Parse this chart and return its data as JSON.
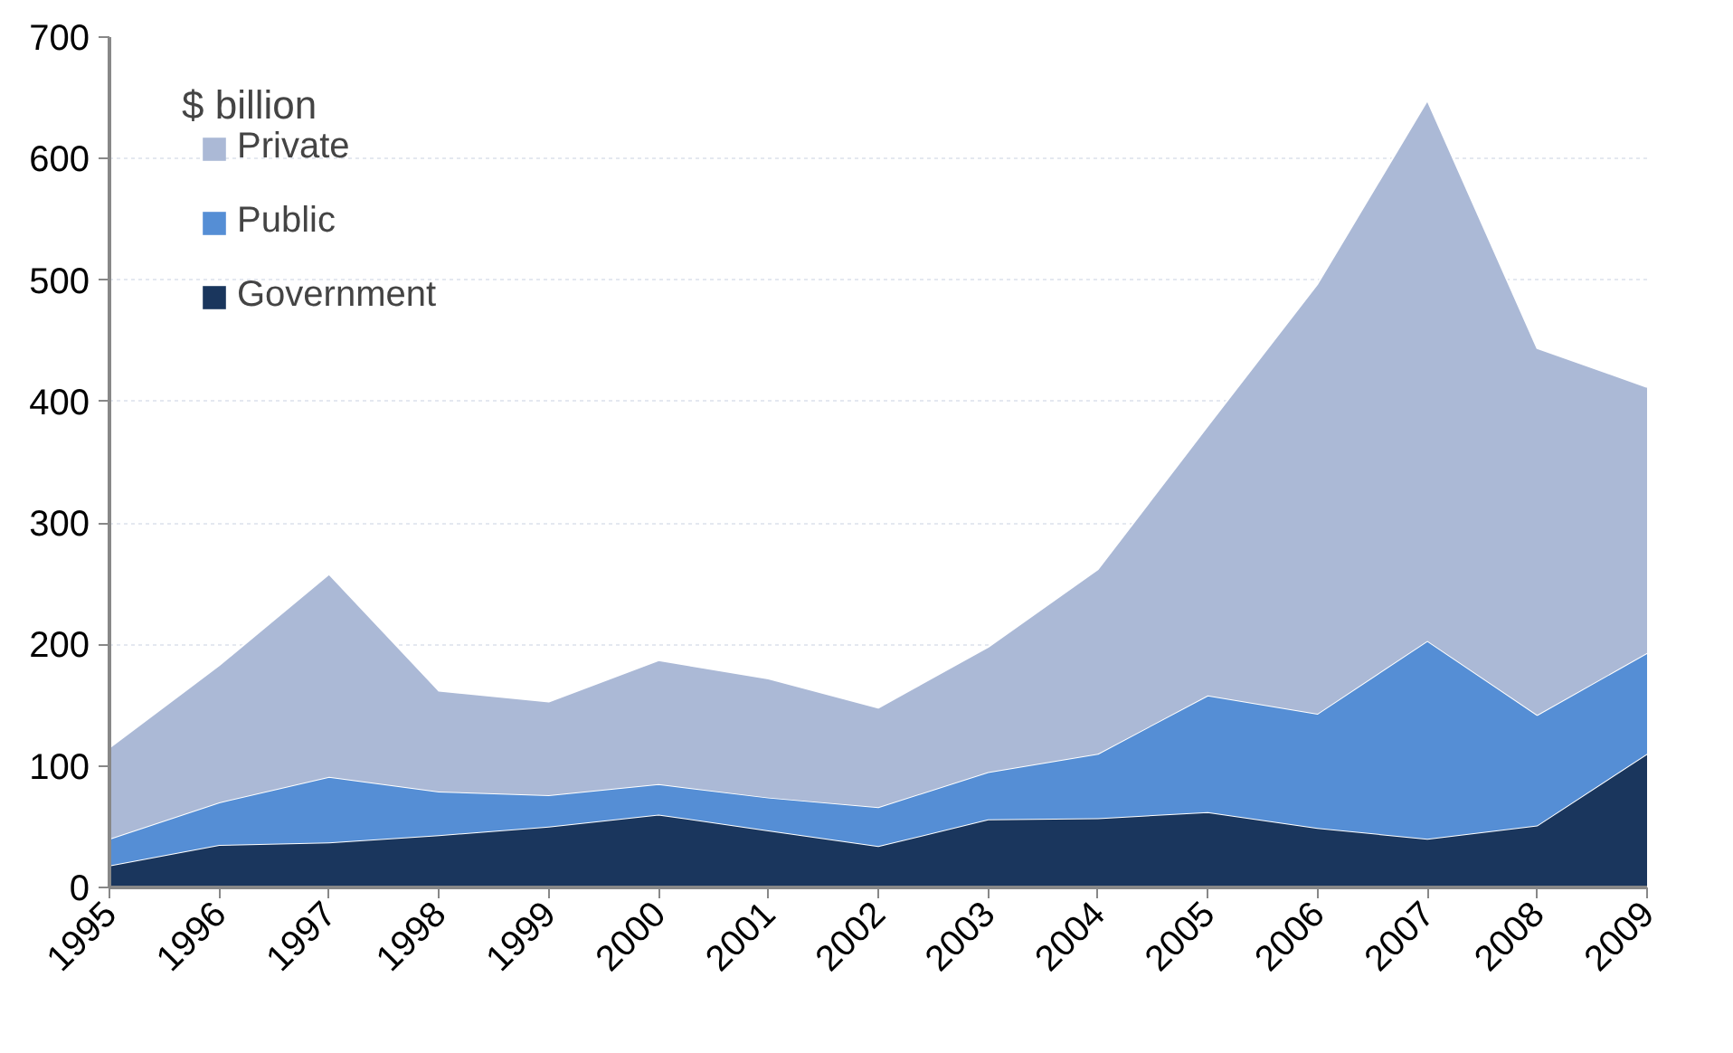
{
  "chart_data": {
    "type": "area",
    "stacked": true,
    "categories": [
      "1995",
      "1996",
      "1997",
      "1998",
      "1999",
      "2000",
      "2001",
      "2002",
      "2003",
      "2004",
      "2005",
      "2006",
      "2007",
      "2008",
      "2009"
    ],
    "series": [
      {
        "name": "Government",
        "color": "#1a365d",
        "values": [
          18,
          35,
          37,
          43,
          50,
          60,
          47,
          34,
          56,
          57,
          62,
          49,
          40,
          51,
          110
        ]
      },
      {
        "name": "Public",
        "color": "#558ed5",
        "values": [
          22,
          35,
          54,
          36,
          26,
          25,
          27,
          32,
          39,
          53,
          96,
          94,
          163,
          91,
          83
        ]
      },
      {
        "name": "Private",
        "color": "#abb9d6",
        "values": [
          75,
          113,
          167,
          83,
          77,
          102,
          98,
          82,
          103,
          152,
          222,
          354,
          445,
          302,
          219
        ]
      }
    ],
    "ylim": [
      0,
      700
    ],
    "yticks": [
      0,
      100,
      200,
      300,
      400,
      500,
      600,
      700
    ],
    "grid": "y",
    "legend": "top left",
    "annotations": [
      "$ billion"
    ]
  }
}
